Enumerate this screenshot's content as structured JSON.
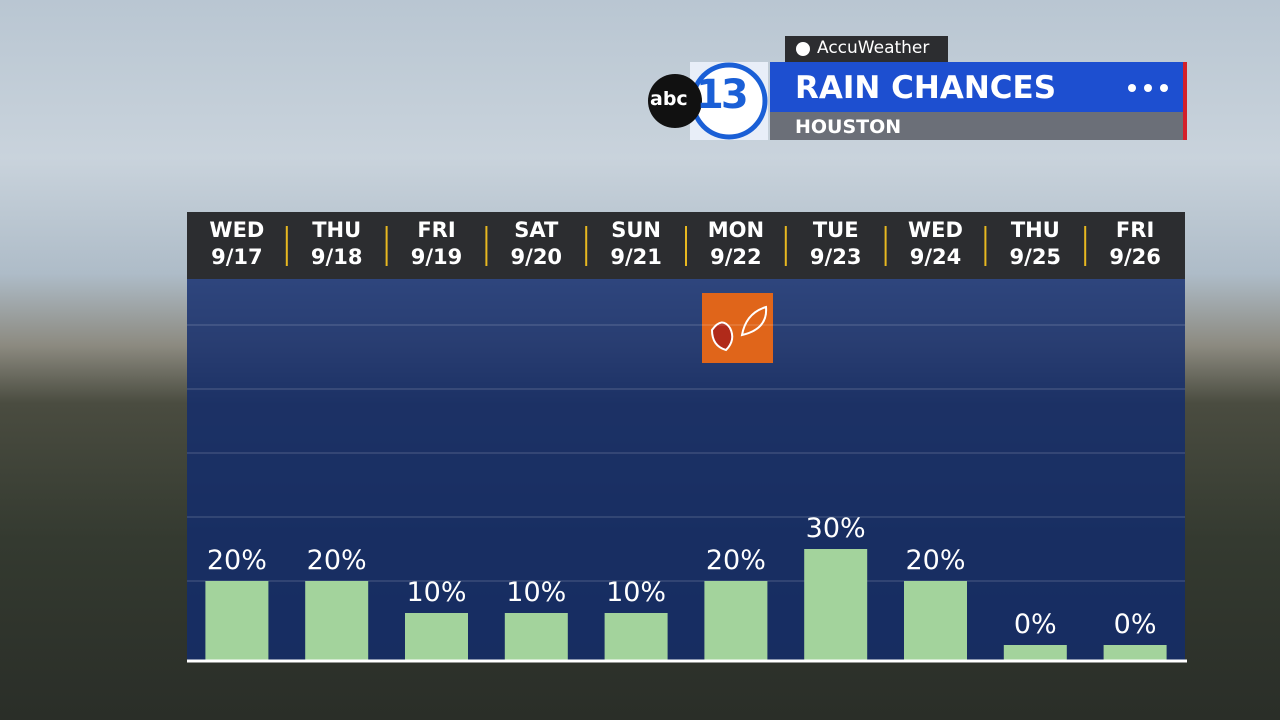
{
  "chart_data": {
    "type": "bar",
    "title": "RAIN CHANCES",
    "subtitle": "HOUSTON",
    "categories": [
      "WED\n9/17",
      "THU\n9/18",
      "FRI\n9/19",
      "SAT\n9/20",
      "SUN\n9/21",
      "MON\n9/22",
      "TUE\n9/23",
      "WED\n9/24",
      "THU\n9/25",
      "FRI\n9/26"
    ],
    "values": [
      20,
      20,
      10,
      10,
      10,
      20,
      30,
      20,
      0,
      0
    ],
    "value_labels": [
      "20%",
      "20%",
      "10%",
      "10%",
      "10%",
      "20%",
      "30%",
      "20%",
      "0%",
      "0%"
    ],
    "color": "#a3d39c",
    "ylim": [
      0,
      100
    ],
    "yticks": [
      20,
      40,
      60,
      80,
      100
    ],
    "grid": true
  },
  "branding": {
    "provider": "AccuWeather",
    "network": "abc",
    "channel": "13"
  }
}
